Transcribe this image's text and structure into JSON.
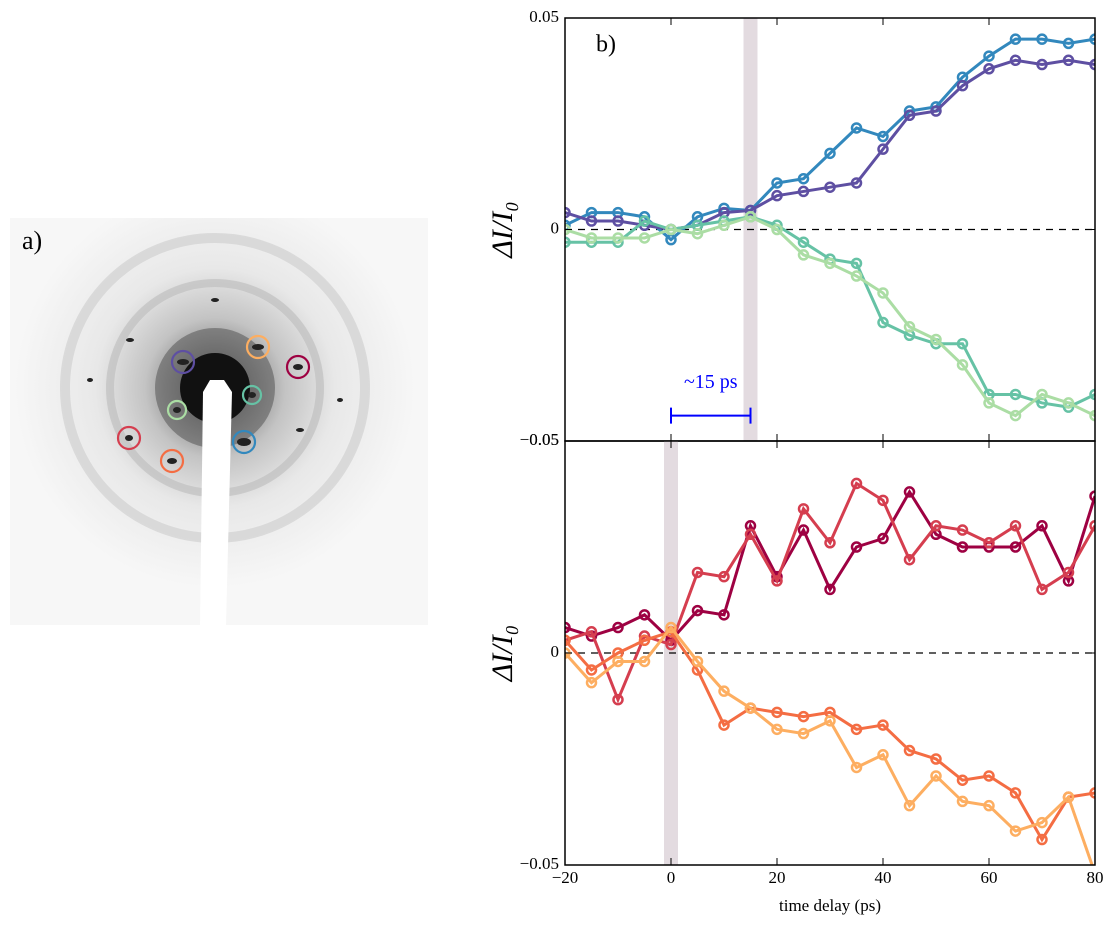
{
  "annotations": {
    "panel_a": "a)"
  },
  "chart_data": [
    {
      "type": "line",
      "panel_label": "b)",
      "ylabel": "ΔI/I₀",
      "x": [
        -20,
        -15,
        -10,
        -5,
        0,
        5,
        10,
        15,
        20,
        25,
        30,
        35,
        40,
        45,
        50,
        55,
        60,
        65,
        70,
        75,
        80
      ],
      "xlim": [
        -20,
        80
      ],
      "xticks": [
        -20,
        0,
        20,
        40,
        60,
        80
      ],
      "ylim": [
        -0.05,
        0.05
      ],
      "yticks": [
        {
          "value": -0.05,
          "label": "−0.05"
        },
        0,
        0.05
      ],
      "hline": 0,
      "highlight_x": 15,
      "scalebar": {
        "x": [
          0,
          15
        ],
        "y": -0.044,
        "label": "~15 ps",
        "color": "#0000ff"
      },
      "series": [
        {
          "color": "#3288bd",
          "values": [
            0.001,
            0.004,
            0.004,
            0.003,
            -0.0024,
            0.003,
            0.005,
            0.0045,
            0.011,
            0.012,
            0.018,
            0.024,
            0.022,
            0.028,
            0.029,
            0.036,
            0.041,
            0.045,
            0.045,
            0.044,
            0.045
          ]
        },
        {
          "color": "#5e4fa2",
          "values": [
            0.004,
            0.002,
            0.002,
            0.001,
            0.0,
            0.001,
            0.004,
            0.0045,
            0.008,
            0.009,
            0.01,
            0.011,
            0.019,
            0.027,
            0.028,
            0.034,
            0.038,
            0.04,
            0.039,
            0.04,
            0.039
          ]
        },
        {
          "color": "#66c2a5",
          "values": [
            -0.003,
            -0.003,
            -0.003,
            0.002,
            0.0,
            0.001,
            0.002,
            0.003,
            0.001,
            -0.003,
            -0.007,
            -0.008,
            -0.022,
            -0.025,
            -0.027,
            -0.027,
            -0.039,
            -0.039,
            -0.041,
            -0.042,
            -0.039
          ]
        },
        {
          "color": "#abdda4",
          "values": [
            0.0,
            -0.002,
            -0.002,
            -0.002,
            0.0,
            -0.001,
            0.001,
            0.003,
            0.0,
            -0.006,
            -0.008,
            -0.011,
            -0.015,
            -0.023,
            -0.026,
            -0.032,
            -0.041,
            -0.044,
            -0.039,
            -0.041,
            -0.044
          ]
        }
      ]
    },
    {
      "type": "line",
      "ylabel": "ΔI/I₀",
      "xlabel": "time delay (ps)",
      "x": [
        -20,
        -15,
        -10,
        -5,
        0,
        5,
        10,
        15,
        20,
        25,
        30,
        35,
        40,
        45,
        50,
        55,
        60,
        65,
        70,
        75,
        80
      ],
      "xlim": [
        -20,
        80
      ],
      "xticks": [
        {
          "value": -20,
          "label": "−20"
        },
        0,
        20,
        40,
        60,
        80
      ],
      "ylim": [
        -0.05,
        0.05
      ],
      "yticks": [
        {
          "value": -0.05,
          "label": "−0.05"
        },
        0,
        0.05
      ],
      "hline": 0,
      "highlight_x": 0,
      "series": [
        {
          "color": "#9e0142",
          "values": [
            0.006,
            0.004,
            0.006,
            0.009,
            0.003,
            0.01,
            0.009,
            0.03,
            0.018,
            0.029,
            0.015,
            0.025,
            0.027,
            0.038,
            0.028,
            0.025,
            0.025,
            0.025,
            0.03,
            0.017,
            0.037
          ]
        },
        {
          "color": "#d53e4f",
          "values": [
            0.003,
            0.005,
            -0.011,
            0.004,
            0.002,
            0.019,
            0.018,
            0.028,
            0.017,
            0.034,
            0.026,
            0.04,
            0.036,
            0.022,
            0.03,
            0.029,
            0.026,
            0.03,
            0.015,
            0.019,
            0.03
          ]
        },
        {
          "color": "#f46d43",
          "values": [
            0.003,
            -0.004,
            0.0,
            0.003,
            0.005,
            -0.004,
            -0.017,
            -0.013,
            -0.014,
            -0.015,
            -0.014,
            -0.018,
            -0.017,
            -0.023,
            -0.025,
            -0.03,
            -0.029,
            -0.033,
            -0.044,
            -0.034,
            -0.033
          ]
        },
        {
          "color": "#fdae61",
          "values": [
            0.0,
            -0.007,
            -0.002,
            -0.002,
            0.006,
            -0.002,
            -0.009,
            -0.013,
            -0.018,
            -0.019,
            -0.016,
            -0.027,
            -0.024,
            -0.036,
            -0.029,
            -0.035,
            -0.036,
            -0.042,
            -0.04,
            -0.034,
            -0.052
          ]
        }
      ]
    }
  ]
}
